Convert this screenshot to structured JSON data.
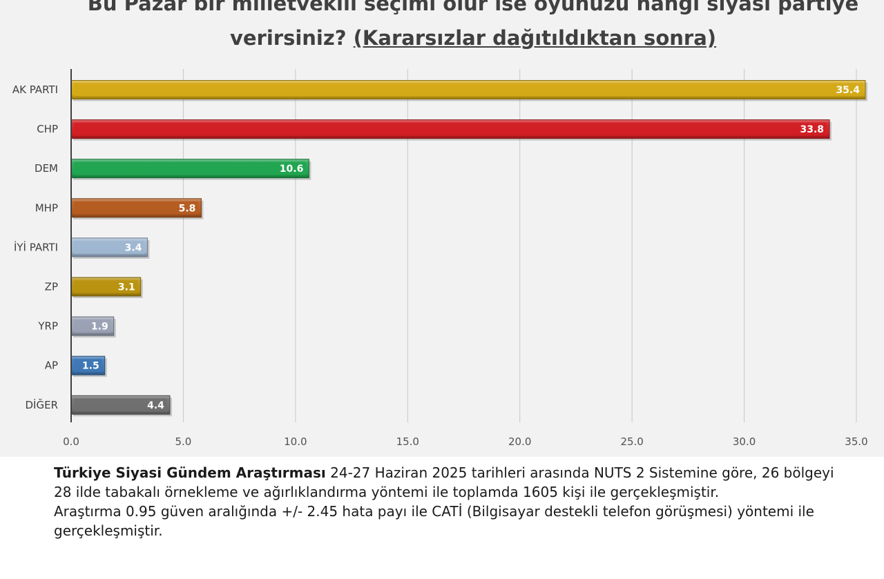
{
  "chart_data": {
    "type": "bar",
    "orientation": "horizontal",
    "title_line1": "Bu Pazar bir milletvekili seçimi olur ise oyunuzu hangi siyasi partiye",
    "title_line2_plain": "verirsiniz? ",
    "title_line2_underlined": "(Kararsızlar dağıtıldıktan sonra)",
    "categories": [
      "AK PARTI",
      "CHP",
      "DEM",
      "MHP",
      "İYİ PARTI",
      "ZP",
      "YRP",
      "AP",
      "DİĞER"
    ],
    "values": [
      35.4,
      33.8,
      10.6,
      5.8,
      3.4,
      3.1,
      1.9,
      1.5,
      4.4
    ],
    "value_labels": [
      "35.4",
      "33.8",
      "10.6",
      "5.8",
      "3.4",
      "3.1",
      "1.9",
      "1.5",
      "4.4"
    ],
    "colors": [
      "#d4a916",
      "#d11f24",
      "#21a450",
      "#b55c21",
      "#9fb6d0",
      "#b8920f",
      "#9aa1b4",
      "#3d77b4",
      "#6f6f6f"
    ],
    "xlim": [
      0,
      35
    ],
    "xticks": [
      0,
      5,
      10,
      15,
      20,
      25,
      30,
      35
    ],
    "xtick_labels": [
      "0.0",
      "5.0",
      "10.0",
      "15.0",
      "20.0",
      "25.0",
      "30.0",
      "35.0"
    ],
    "grid": true,
    "xlabel": "",
    "ylabel": ""
  },
  "footnote": {
    "bold": "Türkiye Siyasi Gündem Araştırması",
    "line1_rest": " 24-27 Haziran 2025 tarihleri arasında NUTS 2 Sistemine göre, 26 bölgeyi",
    "line2": "28 ilde tabakalı örnekleme ve ağırlıklandırma yöntemi ile toplamda 1605 kişi ile gerçekleşmiştir.",
    "line3": " Araştırma 0.95 güven aralığında +/- 2.45 hata payı ile CATİ (Bilgisayar destekli telefon görüşmesi) yöntemi ile",
    "line4": "gerçekleşmiştir."
  }
}
